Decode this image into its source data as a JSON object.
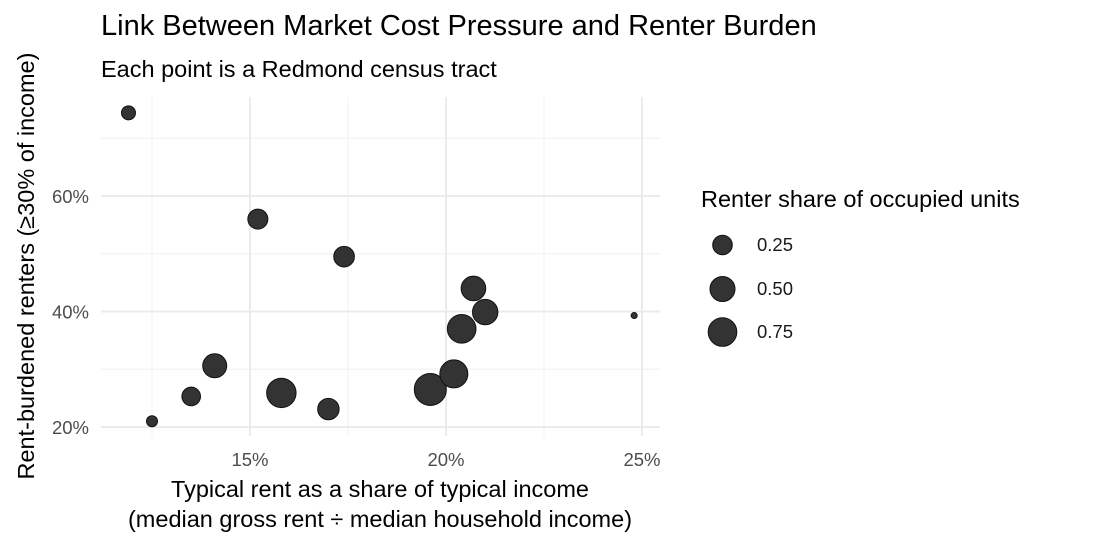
{
  "chart_data": {
    "type": "scatter",
    "title": "Link Between Market Cost Pressure and Renter Burden",
    "subtitle": "Each point is a Redmond census tract",
    "xlabel_line1": "Typical rent as a share of typical income",
    "xlabel_line2": "(median gross rent ÷ median household income)",
    "ylabel": "Rent-burdened renters (≥30% of income)",
    "xlim": [
      11.2,
      25.5
    ],
    "ylim": [
      16.3,
      77.5
    ],
    "x_ticks": [
      {
        "value": 15,
        "label": "15%"
      },
      {
        "value": 20,
        "label": "20%"
      },
      {
        "value": 25,
        "label": "25%"
      }
    ],
    "x_minor": [
      12.5,
      17.5,
      22.5
    ],
    "y_ticks": [
      {
        "value": 20,
        "label": "20%"
      },
      {
        "value": 40,
        "label": "40%"
      },
      {
        "value": 60,
        "label": "60%"
      }
    ],
    "y_minor": [
      30,
      50,
      70
    ],
    "grid": true,
    "size_legend": {
      "title": "Renter share of occupied units",
      "position": "right",
      "entries": [
        {
          "label": "0.25",
          "value": 0.25,
          "radius": 9.8
        },
        {
          "label": "0.50",
          "value": 0.5,
          "radius": 12.5
        },
        {
          "label": "0.75",
          "value": 0.75,
          "radius": 14.3
        }
      ]
    },
    "points": [
      {
        "x": 11.9,
        "y": 74.4,
        "renter_share": 0.1,
        "radius": 7.0
      },
      {
        "x": 12.5,
        "y": 21.0,
        "renter_share": 0.05,
        "radius": 5.5
      },
      {
        "x": 13.5,
        "y": 25.3,
        "renter_share": 0.2,
        "radius": 9.3
      },
      {
        "x": 14.1,
        "y": 30.6,
        "renter_share": 0.48,
        "radius": 12.0
      },
      {
        "x": 15.2,
        "y": 56.0,
        "renter_share": 0.27,
        "radius": 10.0
      },
      {
        "x": 15.8,
        "y": 25.9,
        "renter_share": 0.82,
        "radius": 14.7
      },
      {
        "x": 17.0,
        "y": 23.1,
        "renter_share": 0.33,
        "radius": 10.7
      },
      {
        "x": 17.4,
        "y": 49.5,
        "renter_share": 0.3,
        "radius": 10.3
      },
      {
        "x": 19.6,
        "y": 26.5,
        "renter_share": 1.0,
        "radius": 16.0
      },
      {
        "x": 20.2,
        "y": 29.2,
        "renter_share": 0.72,
        "radius": 14.0
      },
      {
        "x": 20.4,
        "y": 37.0,
        "renter_share": 0.76,
        "radius": 14.3
      },
      {
        "x": 20.7,
        "y": 44.0,
        "renter_share": 0.51,
        "radius": 12.3
      },
      {
        "x": 21.0,
        "y": 39.9,
        "renter_share": 0.56,
        "radius": 12.7
      },
      {
        "x": 24.8,
        "y": 39.3,
        "renter_share": 0.01,
        "radius": 3.0
      }
    ],
    "colors": {
      "point_fill": "#333333",
      "point_stroke": "#111111",
      "grid_major": "#ebebeb",
      "grid_minor": "#f3f3f3",
      "tick_label": "#4d4d4d"
    }
  }
}
